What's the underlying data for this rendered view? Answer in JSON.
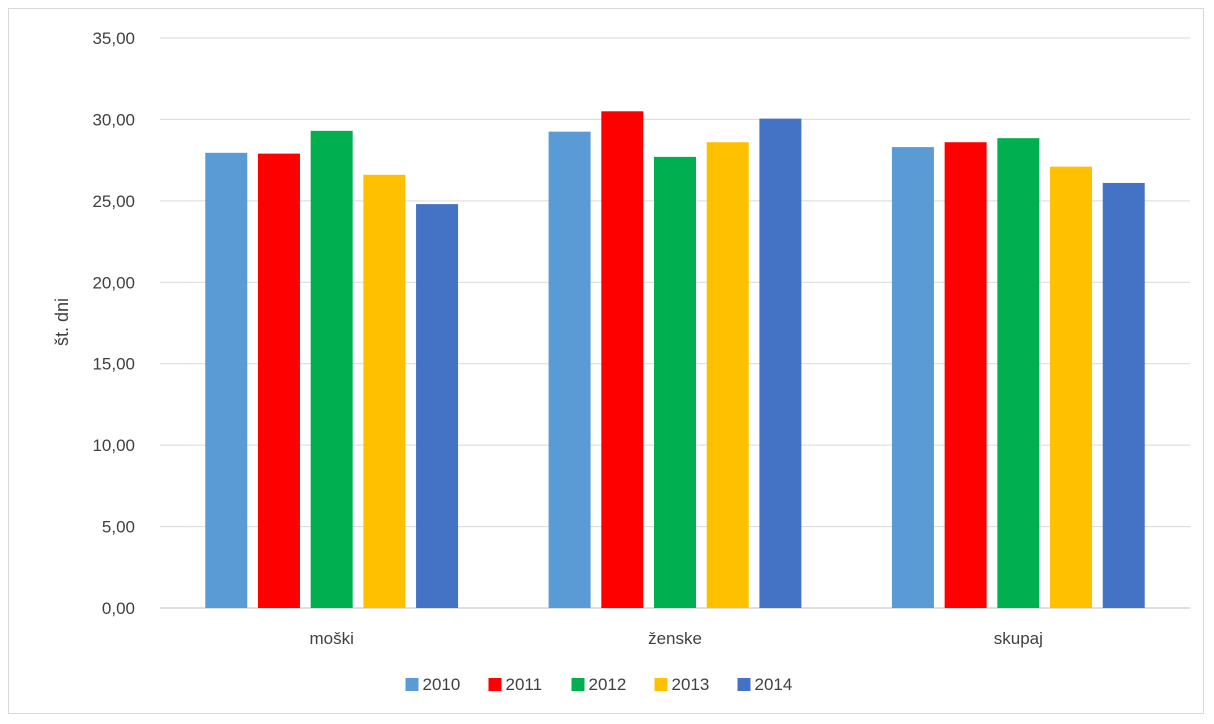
{
  "chart_data": {
    "type": "bar",
    "categories": [
      "moški",
      "ženske",
      "skupaj"
    ],
    "series": [
      {
        "name": "2010",
        "color": "#5B9BD5",
        "values": [
          27.95,
          29.25,
          28.3
        ]
      },
      {
        "name": "2011",
        "color": "#FF0000",
        "values": [
          27.9,
          30.5,
          28.6
        ]
      },
      {
        "name": "2012",
        "color": "#00B050",
        "values": [
          29.3,
          27.7,
          28.85
        ]
      },
      {
        "name": "2013",
        "color": "#FFC000",
        "values": [
          26.6,
          28.6,
          27.1
        ]
      },
      {
        "name": "2014",
        "color": "#4472C4",
        "values": [
          24.8,
          30.05,
          26.1
        ]
      }
    ],
    "title": "",
    "xlabel": "",
    "ylabel": "št. dni",
    "ylim": [
      0,
      35
    ],
    "yticks": [
      "0,00",
      "5,00",
      "10,00",
      "15,00",
      "20,00",
      "25,00",
      "30,00",
      "35,00"
    ],
    "grid": true,
    "legend": "bottom"
  }
}
